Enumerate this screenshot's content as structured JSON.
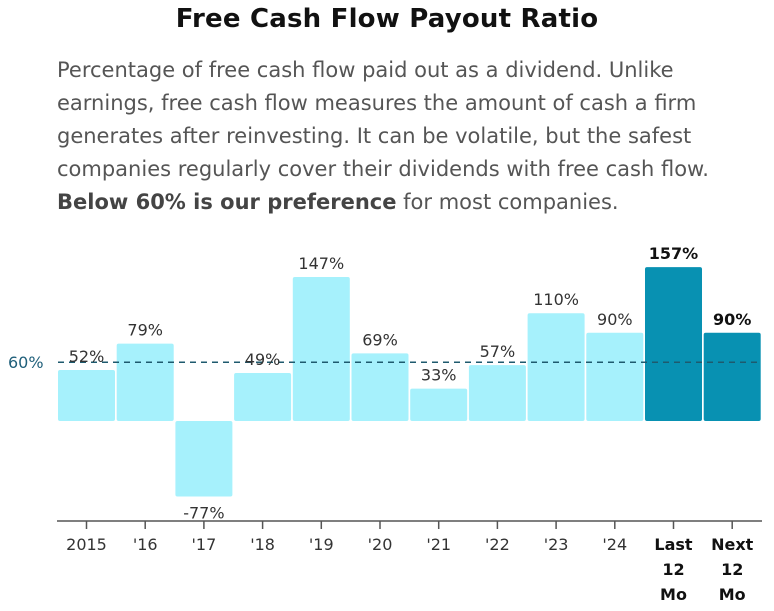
{
  "title": "Free Cash Flow Payout Ratio",
  "description": {
    "text": "Percentage of free cash flow paid out as a dividend. Unlike earnings, free cash flow measures the amount of cash a firm generates after reinvesting. It can be volatile, but the safest companies regularly cover their dividends with free cash flow.",
    "bold": "Below 60% is our preference",
    "tail": "for most companies."
  },
  "chart_data": {
    "type": "bar",
    "categories": [
      "2015",
      "'16",
      "'17",
      "'18",
      "'19",
      "'20",
      "'21",
      "'22",
      "'23",
      "'24",
      "Last 12 Mo",
      "Next 12 Mo"
    ],
    "category_lines": [
      [
        "2015"
      ],
      [
        "'16"
      ],
      [
        "'17"
      ],
      [
        "'18"
      ],
      [
        "'19"
      ],
      [
        "'20"
      ],
      [
        "'21"
      ],
      [
        "'22"
      ],
      [
        "'23"
      ],
      [
        "'24"
      ],
      [
        "Last",
        "12",
        "Mo"
      ],
      [
        "Next",
        "12",
        "Mo"
      ]
    ],
    "values": [
      52,
      79,
      -77,
      49,
      147,
      69,
      33,
      57,
      110,
      90,
      157,
      90
    ],
    "labels": [
      "52%",
      "79%",
      "-77%",
      "49%",
      "147%",
      "69%",
      "33%",
      "57%",
      "110%",
      "90%",
      "157%",
      "90%"
    ],
    "highlighted": [
      false,
      false,
      false,
      false,
      false,
      false,
      false,
      false,
      false,
      false,
      true,
      true
    ],
    "reference_line": {
      "value": 60,
      "label": "60%"
    },
    "ylim": [
      -100,
      180
    ],
    "colors": {
      "bar": "#a6f1fc",
      "highlight": "#0891b2",
      "reference": "#1e5a6e",
      "axis": "#555555",
      "text": "#333333"
    }
  }
}
